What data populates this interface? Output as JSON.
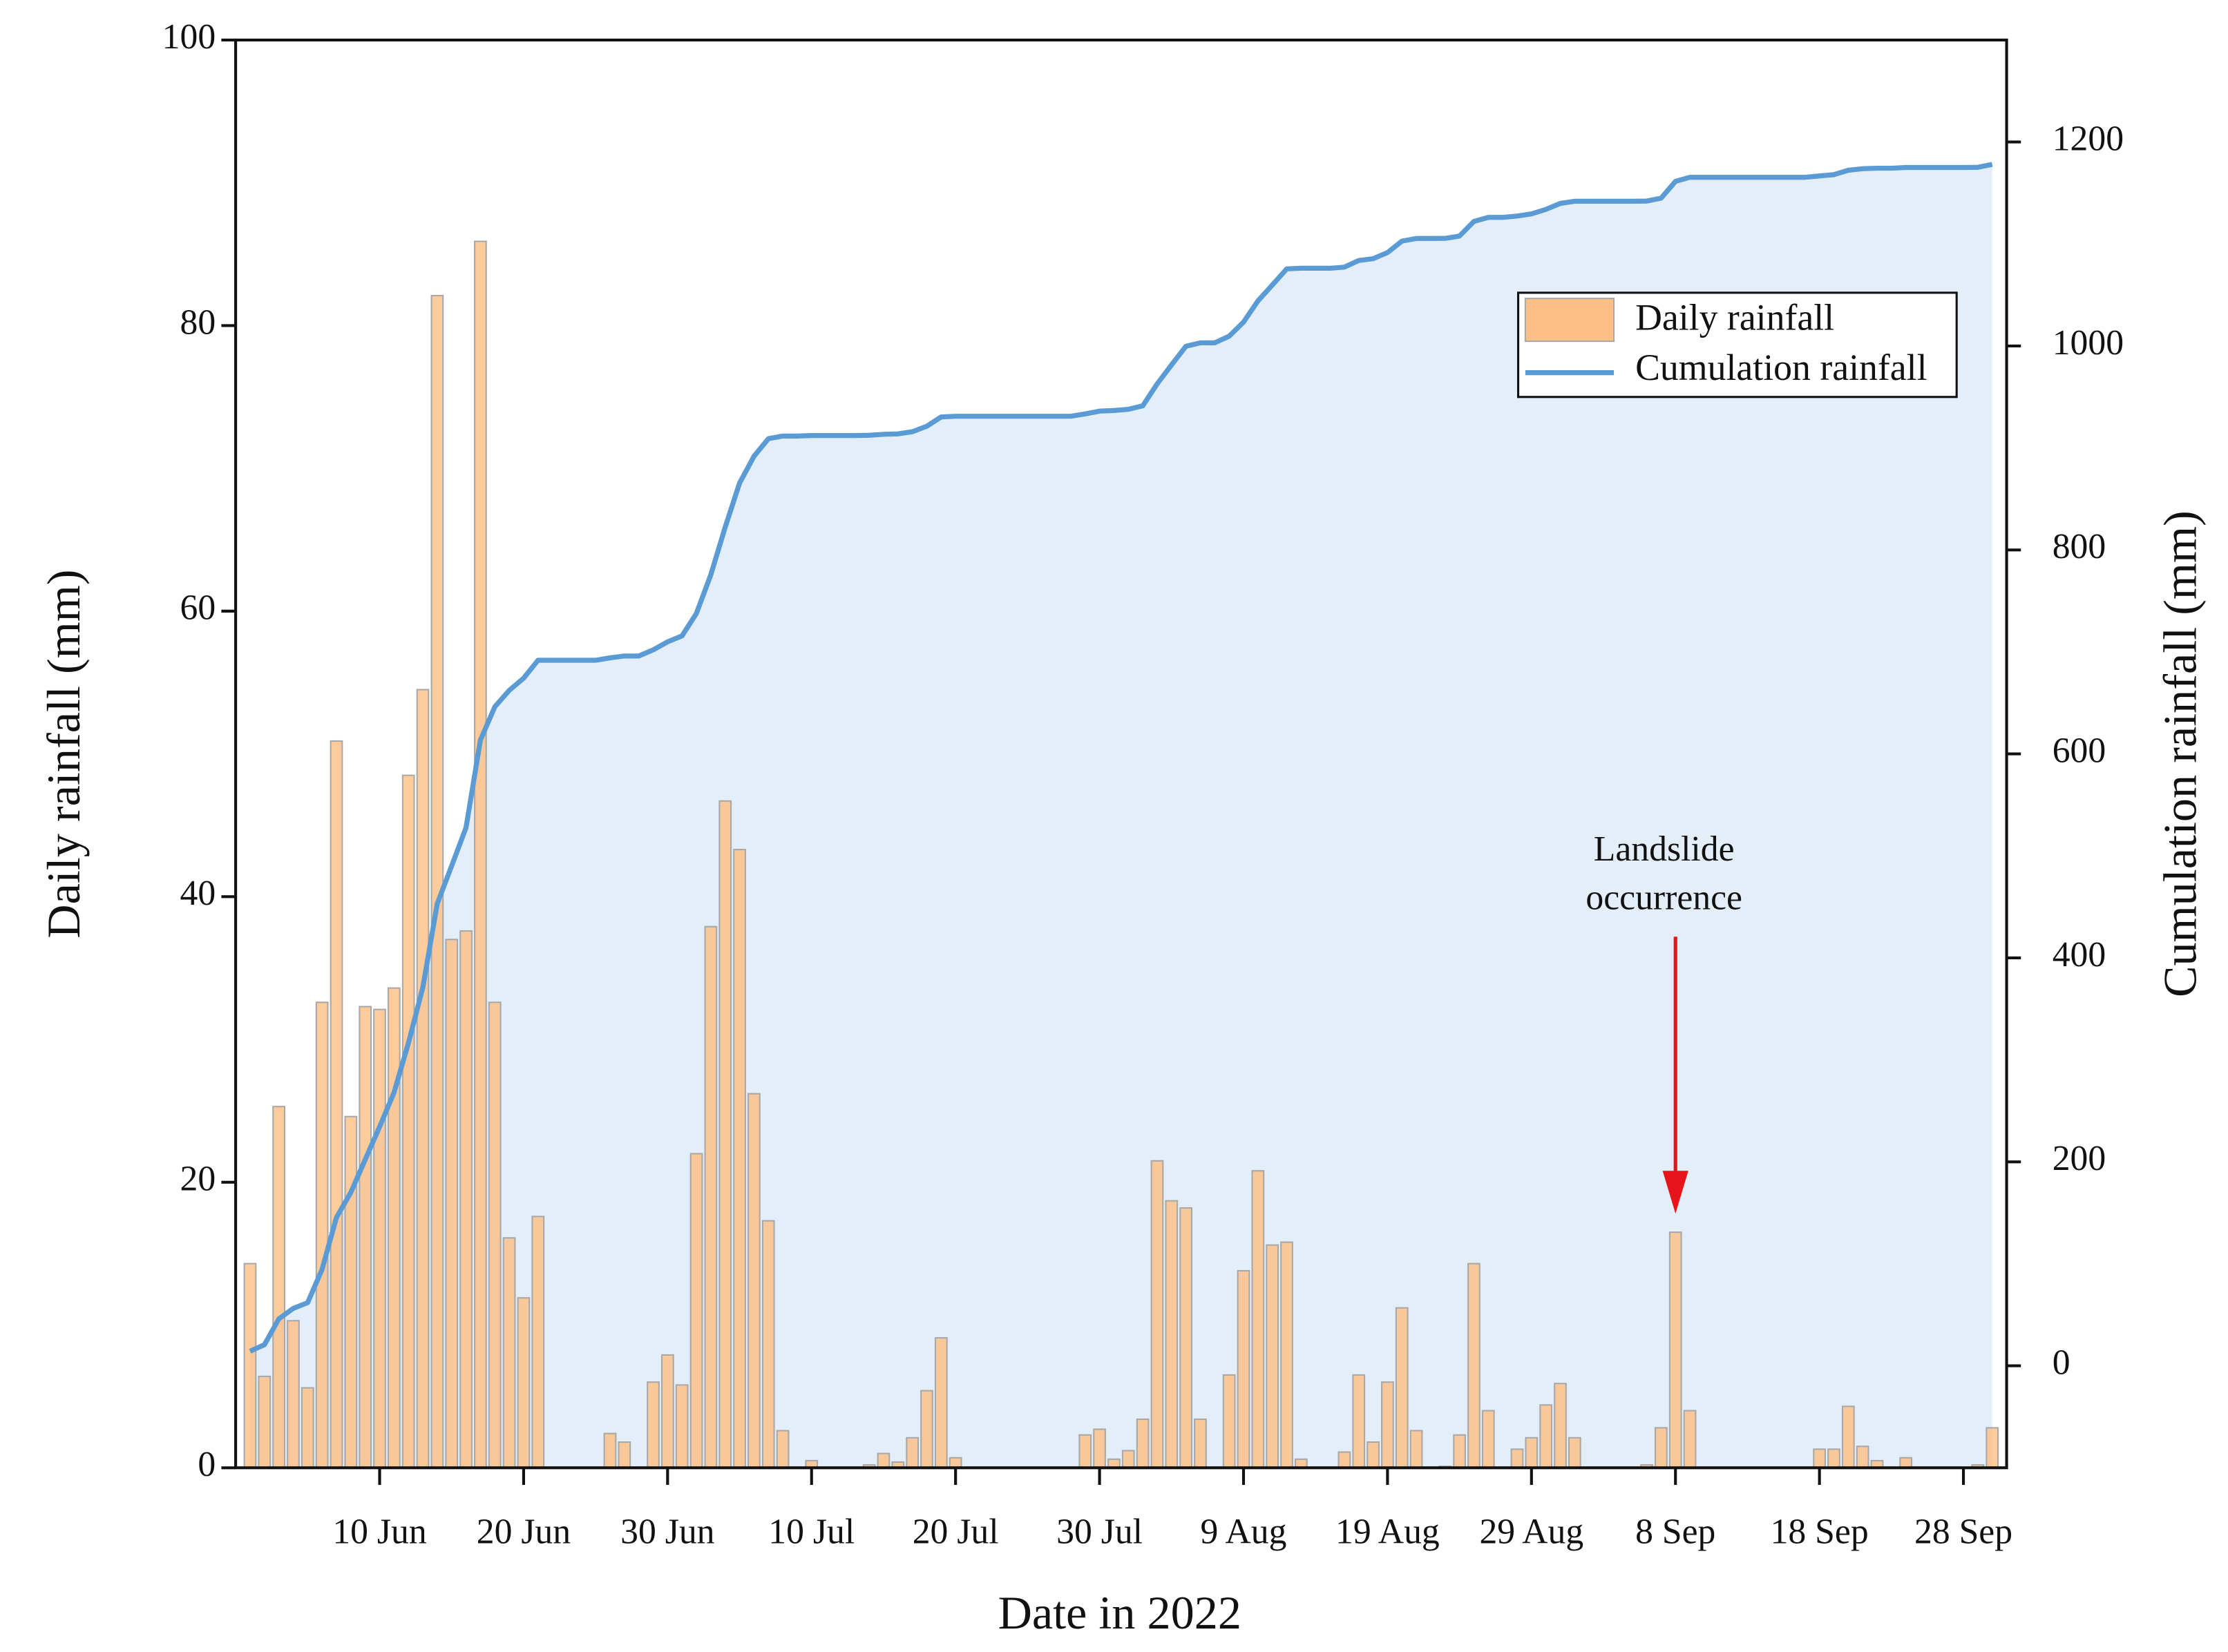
{
  "chart_data": {
    "type": "bar",
    "x_label": "Date in 2022",
    "y_label": "Daily rainfall (mm)",
    "y2_label": "Cumulation rainfall (mm)",
    "x": [
      "2022-06-01",
      "2022-06-02",
      "2022-06-03",
      "2022-06-04",
      "2022-06-05",
      "2022-06-06",
      "2022-06-07",
      "2022-06-08",
      "2022-06-09",
      "2022-06-10",
      "2022-06-11",
      "2022-06-12",
      "2022-06-13",
      "2022-06-14",
      "2022-06-15",
      "2022-06-16",
      "2022-06-17",
      "2022-06-18",
      "2022-06-19",
      "2022-06-20",
      "2022-06-21",
      "2022-06-22",
      "2022-06-23",
      "2022-06-24",
      "2022-06-25",
      "2022-06-26",
      "2022-06-27",
      "2022-06-28",
      "2022-06-29",
      "2022-06-30",
      "2022-07-01",
      "2022-07-02",
      "2022-07-03",
      "2022-07-04",
      "2022-07-05",
      "2022-07-06",
      "2022-07-07",
      "2022-07-08",
      "2022-07-09",
      "2022-07-10",
      "2022-07-11",
      "2022-07-12",
      "2022-07-13",
      "2022-07-14",
      "2022-07-15",
      "2022-07-16",
      "2022-07-17",
      "2022-07-18",
      "2022-07-19",
      "2022-07-20",
      "2022-07-21",
      "2022-07-22",
      "2022-07-23",
      "2022-07-24",
      "2022-07-25",
      "2022-07-26",
      "2022-07-27",
      "2022-07-28",
      "2022-07-29",
      "2022-07-30",
      "2022-07-31",
      "2022-08-01",
      "2022-08-02",
      "2022-08-03",
      "2022-08-04",
      "2022-08-05",
      "2022-08-06",
      "2022-08-07",
      "2022-08-08",
      "2022-08-09",
      "2022-08-10",
      "2022-08-11",
      "2022-08-12",
      "2022-08-13",
      "2022-08-14",
      "2022-08-15",
      "2022-08-16",
      "2022-08-17",
      "2022-08-18",
      "2022-08-19",
      "2022-08-20",
      "2022-08-21",
      "2022-08-22",
      "2022-08-23",
      "2022-08-24",
      "2022-08-25",
      "2022-08-26",
      "2022-08-27",
      "2022-08-28",
      "2022-08-29",
      "2022-08-30",
      "2022-08-31",
      "2022-09-01",
      "2022-09-02",
      "2022-09-03",
      "2022-09-04",
      "2022-09-05",
      "2022-09-06",
      "2022-09-07",
      "2022-09-08",
      "2022-09-09",
      "2022-09-10",
      "2022-09-11",
      "2022-09-12",
      "2022-09-13",
      "2022-09-14",
      "2022-09-15",
      "2022-09-16",
      "2022-09-17",
      "2022-09-18",
      "2022-09-19",
      "2022-09-20",
      "2022-09-21",
      "2022-09-22",
      "2022-09-23",
      "2022-09-24",
      "2022-09-25",
      "2022-09-26",
      "2022-09-27",
      "2022-09-28",
      "2022-09-29",
      "2022-09-30"
    ],
    "series": [
      {
        "name": "Daily rainfall",
        "type": "bar",
        "color": "#fdbf86",
        "edge_color": "#a8a8a8",
        "values": [
          14.3,
          6.4,
          25.3,
          10.3,
          5.6,
          32.6,
          50.9,
          24.6,
          32.3,
          32.1,
          33.6,
          48.5,
          54.5,
          82.1,
          37.0,
          37.6,
          85.9,
          32.6,
          16.1,
          11.9,
          17.6,
          0,
          0,
          0,
          0,
          2.4,
          1.8,
          0,
          6.0,
          7.9,
          5.8,
          22.0,
          37.9,
          46.7,
          43.3,
          26.2,
          17.3,
          2.6,
          0,
          0.5,
          0,
          0,
          0,
          0.2,
          1.0,
          0.4,
          2.1,
          5.4,
          9.1,
          0.7,
          0,
          0,
          0,
          0,
          0,
          0,
          0,
          0,
          2.3,
          2.7,
          0.6,
          1.2,
          3.4,
          21.5,
          18.7,
          18.2,
          3.4,
          0,
          6.5,
          13.8,
          20.8,
          15.6,
          15.8,
          0.6,
          0,
          0,
          1.1,
          6.5,
          1.8,
          6.0,
          11.2,
          2.6,
          0,
          0.1,
          2.3,
          14.3,
          4.0,
          0,
          1.3,
          2.1,
          4.4,
          5.9,
          2.1,
          0,
          0,
          0,
          0,
          0.2,
          2.8,
          16.5,
          4.0,
          0,
          0,
          0,
          0,
          0,
          0,
          0,
          0,
          1.3,
          1.3,
          4.3,
          1.5,
          0.5,
          0,
          0.7,
          0,
          0,
          0,
          0,
          0.2,
          2.8
        ]
      },
      {
        "name": "Cumulation rainfall",
        "type": "line",
        "axis": "y2",
        "color": "#5b9bd5",
        "area_color": "#e3eef8",
        "values": [
          14.3,
          20.7,
          46.0,
          56.3,
          61.9,
          94.5,
          145.4,
          170.0,
          202.3,
          234.4,
          268.0,
          316.5,
          371.0,
          453.1,
          490.1,
          527.7,
          613.6,
          646.2,
          662.3,
          674.2,
          691.8,
          691.8,
          691.8,
          691.8,
          691.8,
          694.2,
          696.0,
          696.0,
          702.0,
          709.9,
          715.7,
          737.7,
          775.6,
          822.3,
          865.6,
          891.8,
          909.1,
          911.7,
          911.7,
          912.2,
          912.2,
          912.2,
          912.2,
          912.4,
          913.4,
          913.8,
          915.9,
          921.3,
          930.4,
          931.1,
          931.1,
          931.1,
          931.1,
          931.1,
          931.1,
          931.1,
          931.1,
          931.1,
          933.4,
          936.1,
          936.7,
          937.9,
          941.3,
          962.8,
          981.5,
          999.7,
          1003.1,
          1003.1,
          1009.6,
          1023.4,
          1044.2,
          1059.8,
          1075.6,
          1076.2,
          1076.2,
          1076.2,
          1077.3,
          1083.8,
          1085.6,
          1091.6,
          1102.8,
          1105.4,
          1105.4,
          1105.5,
          1107.8,
          1122.1,
          1126.1,
          1126.1,
          1127.4,
          1129.5,
          1133.9,
          1139.8,
          1141.9,
          1141.9,
          1141.9,
          1141.9,
          1141.9,
          1142.1,
          1144.9,
          1161.4,
          1165.4,
          1165.4,
          1165.4,
          1165.4,
          1165.4,
          1165.4,
          1165.4,
          1165.4,
          1165.4,
          1166.7,
          1168.0,
          1172.3,
          1173.8,
          1174.3,
          1174.3,
          1175.0,
          1175.0,
          1175.0,
          1175.0,
          1175.0,
          1175.2,
          1178.0
        ]
      }
    ],
    "xlim": [
      "2022-05-31",
      "2022-10-01"
    ],
    "xticks": [
      {
        "value": "2022-06-10",
        "label": "10 Jun"
      },
      {
        "value": "2022-06-20",
        "label": "20 Jun"
      },
      {
        "value": "2022-06-30",
        "label": "30 Jun"
      },
      {
        "value": "2022-07-10",
        "label": "10 Jul"
      },
      {
        "value": "2022-07-20",
        "label": "20 Jul"
      },
      {
        "value": "2022-07-30",
        "label": "30 Jul"
      },
      {
        "value": "2022-08-09",
        "label": "9 Aug"
      },
      {
        "value": "2022-08-19",
        "label": "19 Aug"
      },
      {
        "value": "2022-08-29",
        "label": "29 Aug"
      },
      {
        "value": "2022-09-08",
        "label": "8 Sep"
      },
      {
        "value": "2022-09-18",
        "label": "18 Sep"
      },
      {
        "value": "2022-09-28",
        "label": "28 Sep"
      }
    ],
    "ylim": [
      0,
      100
    ],
    "yticks": [
      0,
      20,
      40,
      60,
      80,
      100
    ],
    "y2lim": [
      -100,
      1300
    ],
    "y2ticks": [
      0,
      200,
      400,
      600,
      800,
      1000,
      1200
    ],
    "legend": "upper right",
    "annotation": {
      "text": [
        "Landslide",
        "occurrence"
      ],
      "x": "2022-09-08",
      "color": "#e8141c"
    }
  }
}
